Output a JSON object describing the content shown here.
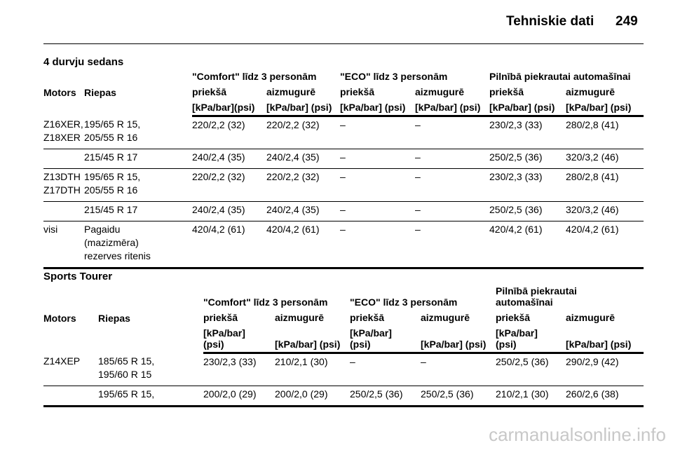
{
  "header": {
    "title": "Tehniskie dati",
    "page": "249"
  },
  "sections": [
    {
      "title": "4 durvju sedans",
      "group_headers": [
        "\"Comfort\" līdz 3 personām",
        "\"ECO\" līdz 3 personām",
        "Pilnībā piekrautai automašīnai"
      ],
      "columns": [
        "Motors",
        "Riepas",
        "priekšā",
        "aizmugurē",
        "priekšā",
        "aizmugurē",
        "priekšā",
        "aizmugurē"
      ],
      "units": [
        "[kPa/bar](psi)",
        "[kPa/bar] (psi)",
        "[kPa/bar] (psi)",
        "[kPa/bar] (psi)",
        "[kPa/bar] (psi)",
        "[kPa/bar] (psi)"
      ],
      "rows": [
        [
          "Z16XER,\nZ18XER",
          "195/65 R 15,\n205/55 R 16",
          "220/2,2 (32)",
          "220/2,2 (32)",
          "–",
          "–",
          "230/2,3 (33)",
          "280/2,8 (41)"
        ],
        [
          "",
          "215/45 R 17",
          "240/2,4 (35)",
          "240/2,4 (35)",
          "–",
          "–",
          "250/2,5 (36)",
          "320/3,2 (46)"
        ],
        [
          "Z13DTH\nZ17DTH",
          "195/65 R 15,\n205/55 R 16",
          "220/2,2 (32)",
          "220/2,2 (32)",
          "–",
          "–",
          "230/2,3 (33)",
          "280/2,8 (41)"
        ],
        [
          "",
          "215/45 R 17",
          "240/2,4 (35)",
          "240/2,4 (35)",
          "–",
          "–",
          "250/2,5 (36)",
          "320/3,2 (46)"
        ],
        [
          "visi",
          "Pagaidu\n(mazizmēra)\nrezerves ritenis",
          "420/4,2 (61)",
          "420/4,2 (61)",
          "–",
          "–",
          "420/4,2 (61)",
          "420/4,2 (61)"
        ]
      ]
    },
    {
      "title": "Sports Tourer",
      "group_headers": [
        "\"Comfort\" līdz 3 personām",
        "\"ECO\" līdz 3 personām",
        "Pilnībā piekrautai\nautomašīnai"
      ],
      "columns": [
        "Motors",
        "Riepas",
        "priekšā",
        "aizmugurē",
        "priekšā",
        "aizmugurē",
        "priekšā",
        "aizmugurē"
      ],
      "units": [
        "[kPa/bar]\n(psi)",
        "[kPa/bar] (psi)",
        "[kPa/bar]\n(psi)",
        "[kPa/bar] (psi)",
        "[kPa/bar]\n(psi)",
        "[kPa/bar] (psi)"
      ],
      "rows": [
        [
          "Z14XEP",
          "185/65 R 15,\n195/60 R 15",
          "230/2,3 (33)",
          "210/2,1 (30)",
          "–",
          "–",
          "250/2,5 (36)",
          "290/2,9 (42)"
        ],
        [
          "",
          "195/65 R 15,",
          "200/2,0 (29)",
          "200/2,0 (29)",
          "250/2,5 (36)",
          "250/2,5 (36)",
          "210/2,1 (30)",
          "260/2,6 (38)"
        ]
      ]
    }
  ],
  "watermark": "carmanualsonline.info"
}
